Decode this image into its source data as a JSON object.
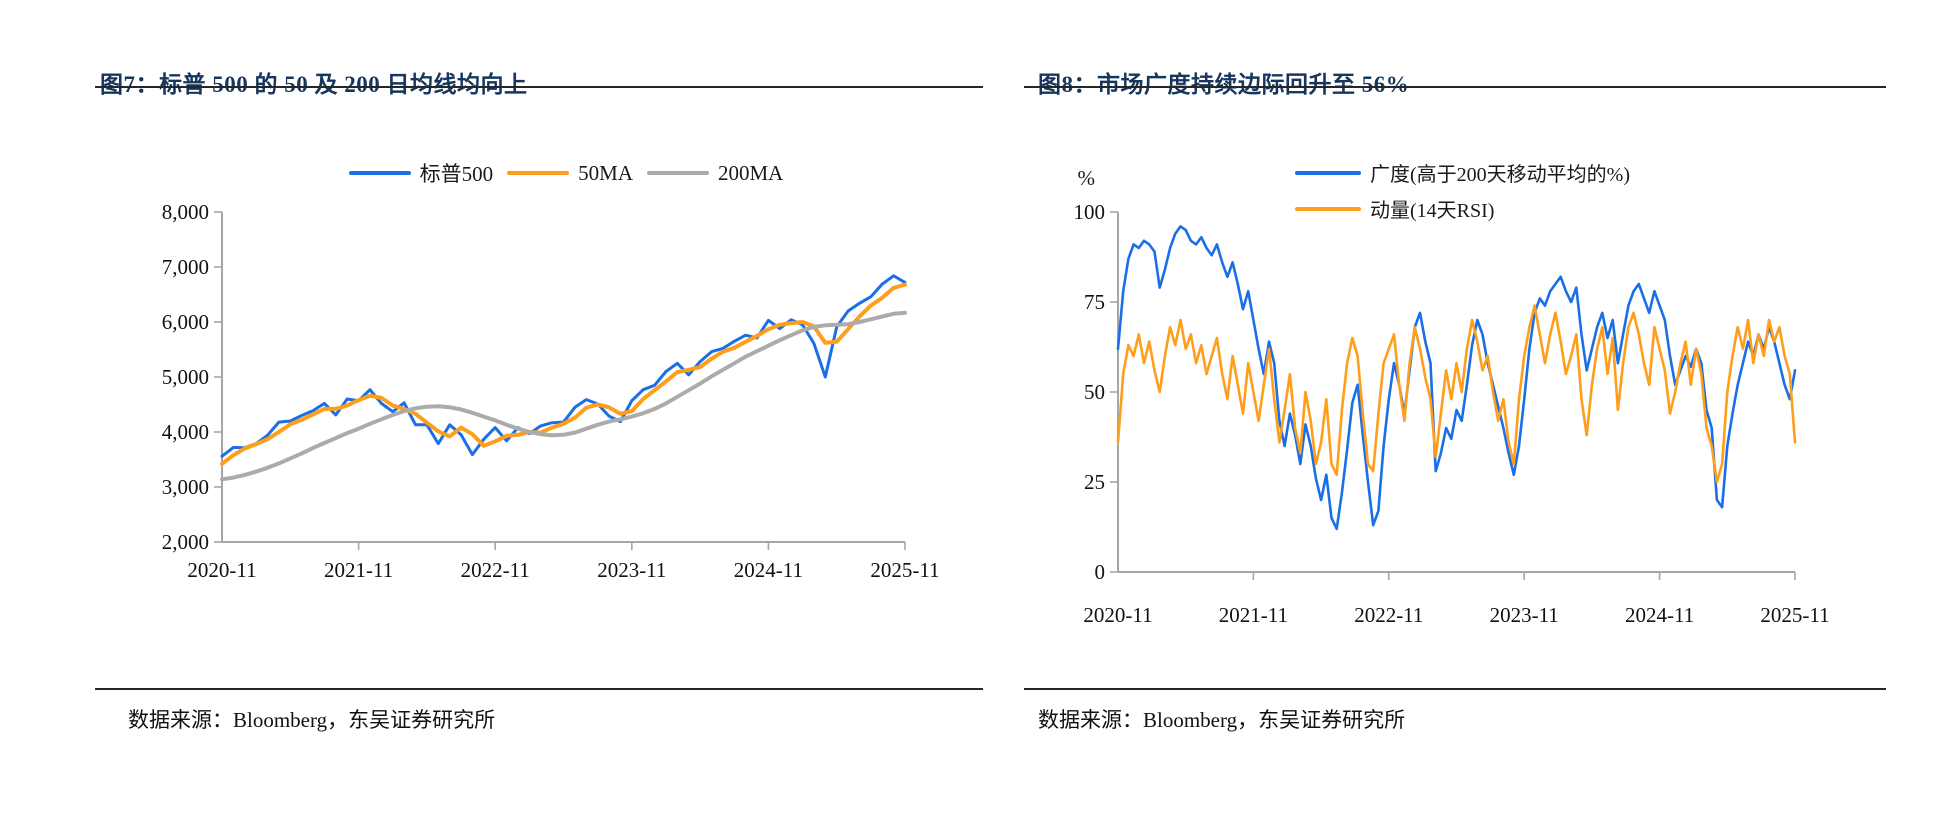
{
  "colors": {
    "title_navy": "#17365D",
    "rule_dark": "#262626",
    "axis_gray": "#A6A6A6",
    "series_blue": "#1A6FE8",
    "series_orange": "#FF9E1B",
    "series_gray": "#ABABAB"
  },
  "chart_data": [
    {
      "type": "line",
      "title": "图7：标普 500 的 50 及 200 日均线均向上",
      "source": "数据来源：Bloomberg，东吴证券研究所",
      "legend_position": "top-center",
      "grid": false,
      "x_tick_labels": [
        "2020-11",
        "2021-11",
        "2022-11",
        "2023-11",
        "2024-11",
        "2025-11"
      ],
      "y_tick_labels": [
        "2,000",
        "3,000",
        "4,000",
        "5,000",
        "6,000",
        "7,000",
        "8,000"
      ],
      "ylim": [
        2000,
        8000
      ],
      "series": [
        {
          "name": "标普500",
          "color": "#1A6FE8",
          "width": 3,
          "values": [
            3560,
            3720,
            3714,
            3790,
            3940,
            4180,
            4200,
            4300,
            4390,
            4520,
            4310,
            4600,
            4570,
            4770,
            4520,
            4370,
            4530,
            4130,
            4130,
            3790,
            4130,
            3950,
            3590,
            3870,
            4080,
            3840,
            4080,
            3970,
            4110,
            4170,
            4180,
            4450,
            4590,
            4510,
            4290,
            4190,
            4570,
            4770,
            4850,
            5100,
            5250,
            5040,
            5280,
            5460,
            5520,
            5650,
            5760,
            5710,
            6030,
            5880,
            6040,
            5950,
            5610,
            5000,
            5910,
            6200,
            6340,
            6460,
            6690,
            6840,
            6720
          ]
        },
        {
          "name": "50MA",
          "color": "#FF9E1B",
          "width": 4,
          "values": [
            3420,
            3580,
            3700,
            3780,
            3870,
            4000,
            4140,
            4220,
            4320,
            4420,
            4420,
            4480,
            4580,
            4660,
            4620,
            4480,
            4420,
            4330,
            4170,
            4010,
            3920,
            4080,
            3960,
            3750,
            3830,
            3930,
            3950,
            4000,
            3990,
            4080,
            4150,
            4260,
            4440,
            4500,
            4450,
            4330,
            4380,
            4600,
            4760,
            4920,
            5090,
            5130,
            5180,
            5330,
            5460,
            5530,
            5640,
            5750,
            5870,
            5950,
            5980,
            6000,
            5920,
            5620,
            5640,
            5870,
            6100,
            6300,
            6440,
            6620,
            6680
          ]
        },
        {
          "name": "200MA",
          "color": "#ABABAB",
          "width": 4,
          "values": [
            3140,
            3170,
            3220,
            3280,
            3350,
            3430,
            3520,
            3610,
            3710,
            3800,
            3890,
            3980,
            4060,
            4150,
            4230,
            4310,
            4380,
            4430,
            4460,
            4470,
            4450,
            4410,
            4350,
            4280,
            4210,
            4130,
            4060,
            4000,
            3960,
            3940,
            3950,
            3990,
            4060,
            4130,
            4190,
            4230,
            4280,
            4340,
            4420,
            4520,
            4640,
            4760,
            4880,
            5010,
            5130,
            5250,
            5370,
            5470,
            5570,
            5670,
            5760,
            5850,
            5910,
            5940,
            5950,
            5960,
            6000,
            6050,
            6100,
            6150,
            6170
          ]
        }
      ]
    },
    {
      "type": "line",
      "title": "图8：市场广度持续边际回升至 56%",
      "source": "数据来源：Bloomberg，东吴证券研究所",
      "y_axis_unit": "%",
      "legend_position": "top-right",
      "grid": false,
      "x_tick_labels": [
        "2020-11",
        "2021-11",
        "2022-11",
        "2023-11",
        "2024-11",
        "2025-11"
      ],
      "y_tick_labels": [
        "0",
        "25",
        "50",
        "75",
        "100"
      ],
      "ylim": [
        0,
        100
      ],
      "series": [
        {
          "name": "广度(高于200天移动平均的%)",
          "color": "#1A6FE8",
          "width": 2.6,
          "values": [
            62,
            78,
            87,
            91,
            90,
            92,
            91,
            89,
            79,
            84,
            90,
            94,
            96,
            95,
            92,
            91,
            93,
            90,
            88,
            91,
            86,
            82,
            86,
            80,
            73,
            78,
            70,
            62,
            55,
            64,
            58,
            42,
            35,
            44,
            38,
            30,
            41,
            35,
            26,
            20,
            27,
            15,
            12,
            22,
            34,
            47,
            52,
            38,
            25,
            13,
            17,
            35,
            48,
            58,
            52,
            44,
            56,
            68,
            72,
            64,
            58,
            28,
            33,
            40,
            37,
            45,
            42,
            52,
            63,
            70,
            66,
            58,
            52,
            46,
            40,
            33,
            27,
            35,
            48,
            62,
            72,
            76,
            74,
            78,
            80,
            82,
            78,
            75,
            79,
            66,
            56,
            62,
            68,
            72,
            65,
            70,
            58,
            66,
            74,
            78,
            80,
            76,
            72,
            78,
            74,
            70,
            60,
            52,
            56,
            60,
            57,
            62,
            58,
            45,
            40,
            20,
            18,
            35,
            44,
            52,
            58,
            64,
            60,
            66,
            62,
            68,
            64,
            58,
            52,
            48,
            56
          ]
        },
        {
          "name": "动量(14天RSI)",
          "color": "#FF9E1B",
          "width": 2.6,
          "values": [
            36,
            55,
            63,
            60,
            66,
            58,
            64,
            56,
            50,
            60,
            68,
            63,
            70,
            62,
            66,
            58,
            63,
            55,
            60,
            65,
            55,
            48,
            60,
            52,
            44,
            58,
            50,
            42,
            52,
            62,
            48,
            36,
            45,
            55,
            40,
            33,
            50,
            42,
            30,
            36,
            48,
            30,
            27,
            45,
            58,
            65,
            60,
            44,
            30,
            28,
            44,
            58,
            62,
            66,
            52,
            42,
            58,
            68,
            62,
            54,
            48,
            32,
            44,
            56,
            48,
            58,
            50,
            62,
            70,
            64,
            56,
            60,
            50,
            42,
            48,
            36,
            30,
            48,
            60,
            68,
            74,
            66,
            58,
            66,
            72,
            64,
            55,
            60,
            66,
            48,
            38,
            52,
            62,
            68,
            55,
            65,
            45,
            58,
            68,
            72,
            66,
            58,
            52,
            68,
            62,
            56,
            44,
            50,
            58,
            64,
            52,
            62,
            55,
            40,
            35,
            25,
            30,
            50,
            60,
            68,
            62,
            70,
            58,
            66,
            60,
            70,
            64,
            68,
            60,
            55,
            36
          ]
        }
      ]
    }
  ]
}
